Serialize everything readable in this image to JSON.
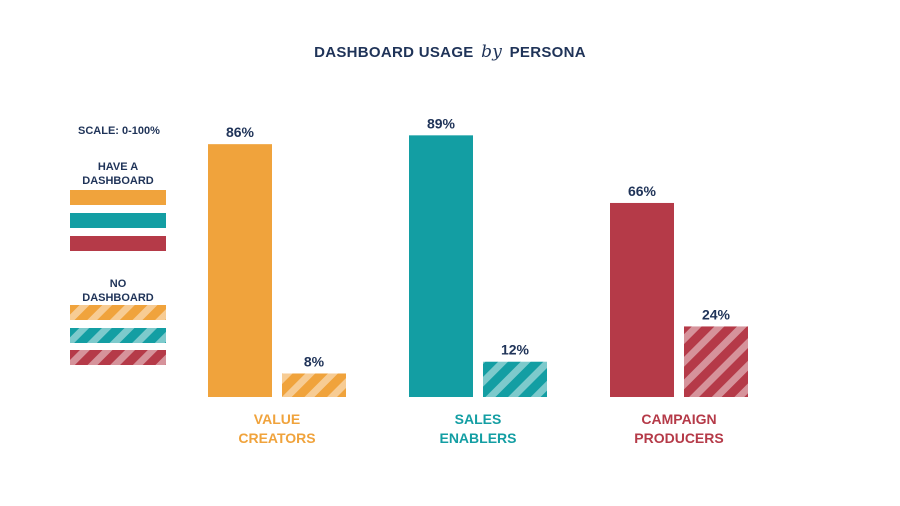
{
  "title": {
    "part1": "DASHBOARD USAGE",
    "by": "by",
    "part2": "PERSONA"
  },
  "legend": {
    "scale_label": "SCALE: 0-100%",
    "have_label_line1": "HAVE A",
    "have_label_line2": "DASHBOARD",
    "no_label_line1": "NO",
    "no_label_line2": "DASHBOARD"
  },
  "colors": {
    "value_creators": "#f0a33c",
    "sales_enablers": "#139ea3",
    "campaign_producers": "#b53a48",
    "text": "#1f3358"
  },
  "chart_data": {
    "type": "bar",
    "title": "DASHBOARD USAGE by PERSONA",
    "categories": [
      {
        "line1": "VALUE",
        "line2": "CREATORS",
        "color": "#f0a33c"
      },
      {
        "line1": "SALES",
        "line2": "ENABLERS",
        "color": "#139ea3"
      },
      {
        "line1": "CAMPAIGN",
        "line2": "PRODUCERS",
        "color": "#b53a48"
      }
    ],
    "series": [
      {
        "name": "HAVE A DASHBOARD",
        "pattern": "solid",
        "values": [
          86,
          89,
          66
        ],
        "labels": [
          "86%",
          "89%",
          "66%"
        ]
      },
      {
        "name": "NO DASHBOARD",
        "pattern": "striped",
        "values": [
          8,
          12,
          24
        ],
        "labels": [
          "8%",
          "12%",
          "24%"
        ]
      }
    ],
    "ylim": [
      0,
      100
    ],
    "grid": false,
    "legend_position": "left"
  }
}
